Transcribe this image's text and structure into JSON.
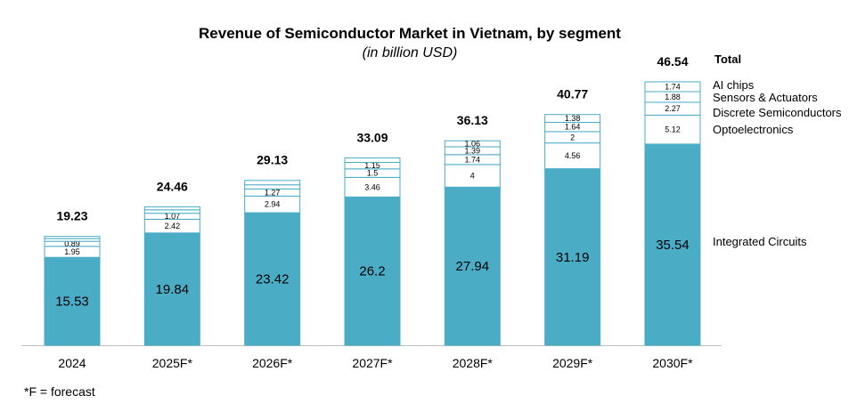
{
  "chart_data": {
    "type": "bar",
    "stacked": true,
    "title": "Revenue of Semiconductor Market in Vietnam, by segment",
    "subtitle": "(in billion USD)",
    "categories": [
      "2024",
      "2025F*",
      "2026F*",
      "2027F*",
      "2028F*",
      "2029F*",
      "2030F*"
    ],
    "series": [
      {
        "name": "Integrated Circuits",
        "values": [
          15.53,
          19.84,
          23.42,
          26.2,
          27.94,
          31.19,
          35.54
        ],
        "labels": [
          "15.53",
          "19.84",
          "23.42",
          "26.2",
          "27.94",
          "31.19",
          "35.54"
        ]
      },
      {
        "name": "Optoelectronics",
        "values": [
          1.95,
          2.42,
          2.94,
          3.46,
          4,
          4.56,
          5.12
        ],
        "labels": [
          "1.95",
          "2.42",
          "2.94",
          "3.46",
          "4",
          "4.56",
          "5.12"
        ]
      },
      {
        "name": "Discrete Semiconductors",
        "values": [
          0.89,
          1.07,
          1.27,
          1.5,
          1.74,
          2,
          2.27
        ],
        "labels": [
          "0.89",
          "1.07",
          "1.27",
          "1.5",
          "1.74",
          "2",
          "2.27"
        ]
      },
      {
        "name": "Sensors & Actuators",
        "values": [
          0.48,
          0.6,
          0.72,
          1.15,
          1.39,
          1.64,
          1.88
        ],
        "labels": [
          "",
          "",
          "",
          "1.15",
          "1.39",
          "1.64",
          "1.88"
        ]
      },
      {
        "name": "AI chips",
        "values": [
          0.38,
          0.53,
          0.78,
          0.78,
          1.06,
          1.38,
          1.74
        ],
        "labels": [
          "",
          "",
          "",
          "",
          "1.06",
          "1.38",
          "1.74"
        ]
      }
    ],
    "totals": [
      "19.23",
      "24.46",
      "29.13",
      "33.09",
      "36.13",
      "40.77",
      "46.54"
    ],
    "totals_label": "Total",
    "ylim": [
      0,
      46.54
    ],
    "legend_placement": "right",
    "grid": false,
    "colors": {
      "Integrated Circuits": "#4BACC6",
      "other_segments": "#FFFFFF",
      "outline": "#4BACC6",
      "axis": "#BFBFBF"
    }
  },
  "footnote": "*F = forecast"
}
